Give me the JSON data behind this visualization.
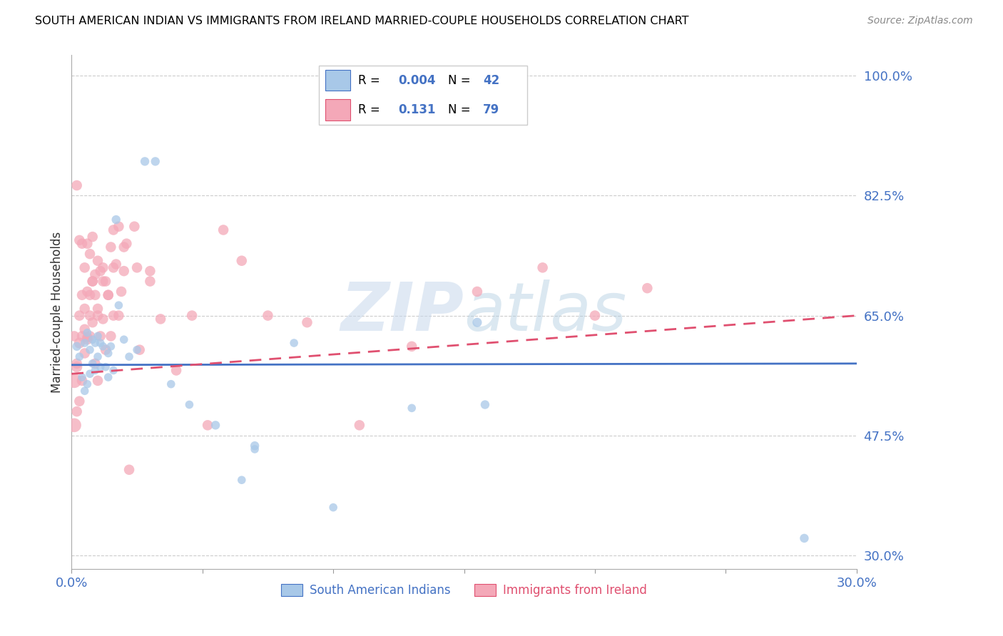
{
  "title": "SOUTH AMERICAN INDIAN VS IMMIGRANTS FROM IRELAND MARRIED-COUPLE HOUSEHOLDS CORRELATION CHART",
  "source": "Source: ZipAtlas.com",
  "ylabel": "Married-couple Households",
  "legend1_label": "South American Indians",
  "legend2_label": "Immigrants from Ireland",
  "r1": "0.004",
  "n1": "42",
  "r2": "0.131",
  "n2": "79",
  "xmin": 0.0,
  "xmax": 0.3,
  "ymin": 0.28,
  "ymax": 1.03,
  "yticks": [
    0.3,
    0.475,
    0.65,
    0.825,
    1.0
  ],
  "ytick_labels": [
    "30.0%",
    "47.5%",
    "65.0%",
    "82.5%",
    "100.0%"
  ],
  "xticks": [
    0.0,
    0.05,
    0.1,
    0.15,
    0.2,
    0.25,
    0.3
  ],
  "xtick_labels": [
    "0.0%",
    "",
    "",
    "",
    "",
    "",
    "30.0%"
  ],
  "color1": "#a8c8e8",
  "color2": "#f4a8b8",
  "trendline1_color": "#4472c4",
  "trendline2_color": "#e05070",
  "blue_color": "#4472c4",
  "pink_color": "#e05070",
  "watermark_color": "#d0dff0",
  "scatter1_x": [
    0.002,
    0.003,
    0.004,
    0.005,
    0.005,
    0.006,
    0.006,
    0.007,
    0.007,
    0.008,
    0.008,
    0.009,
    0.009,
    0.01,
    0.01,
    0.011,
    0.011,
    0.012,
    0.013,
    0.014,
    0.014,
    0.015,
    0.016,
    0.017,
    0.018,
    0.02,
    0.022,
    0.025,
    0.028,
    0.032,
    0.038,
    0.045,
    0.055,
    0.07,
    0.085,
    0.1,
    0.13,
    0.155,
    0.158,
    0.07,
    0.065,
    0.28
  ],
  "scatter1_y": [
    0.605,
    0.59,
    0.56,
    0.54,
    0.61,
    0.55,
    0.625,
    0.6,
    0.565,
    0.615,
    0.58,
    0.61,
    0.57,
    0.62,
    0.59,
    0.61,
    0.575,
    0.605,
    0.575,
    0.595,
    0.56,
    0.605,
    0.57,
    0.79,
    0.665,
    0.615,
    0.59,
    0.6,
    0.875,
    0.875,
    0.55,
    0.52,
    0.49,
    0.455,
    0.61,
    0.37,
    0.515,
    0.64,
    0.52,
    0.46,
    0.41,
    0.325
  ],
  "scatter1_sizes": [
    80,
    70,
    70,
    70,
    70,
    70,
    70,
    70,
    70,
    70,
    70,
    70,
    70,
    70,
    70,
    70,
    70,
    70,
    70,
    70,
    70,
    70,
    70,
    80,
    70,
    70,
    70,
    70,
    80,
    80,
    70,
    70,
    80,
    70,
    70,
    70,
    70,
    90,
    80,
    80,
    70,
    80
  ],
  "scatter2_x": [
    0.001,
    0.001,
    0.002,
    0.002,
    0.002,
    0.003,
    0.003,
    0.003,
    0.004,
    0.004,
    0.004,
    0.005,
    0.005,
    0.005,
    0.006,
    0.006,
    0.006,
    0.007,
    0.007,
    0.007,
    0.008,
    0.008,
    0.008,
    0.009,
    0.009,
    0.01,
    0.01,
    0.01,
    0.011,
    0.011,
    0.012,
    0.012,
    0.013,
    0.013,
    0.014,
    0.015,
    0.015,
    0.016,
    0.016,
    0.017,
    0.018,
    0.019,
    0.02,
    0.021,
    0.022,
    0.024,
    0.026,
    0.03,
    0.034,
    0.04,
    0.046,
    0.052,
    0.058,
    0.065,
    0.075,
    0.09,
    0.11,
    0.13,
    0.155,
    0.18,
    0.2,
    0.22,
    0.001,
    0.002,
    0.003,
    0.004,
    0.005,
    0.006,
    0.007,
    0.008,
    0.009,
    0.01,
    0.012,
    0.014,
    0.016,
    0.018,
    0.02,
    0.025,
    0.03
  ],
  "scatter2_y": [
    0.555,
    0.49,
    0.575,
    0.51,
    0.84,
    0.61,
    0.525,
    0.76,
    0.62,
    0.555,
    0.755,
    0.66,
    0.595,
    0.72,
    0.685,
    0.615,
    0.755,
    0.68,
    0.62,
    0.74,
    0.7,
    0.64,
    0.765,
    0.71,
    0.58,
    0.66,
    0.555,
    0.73,
    0.715,
    0.62,
    0.7,
    0.645,
    0.7,
    0.6,
    0.68,
    0.75,
    0.62,
    0.775,
    0.72,
    0.725,
    0.65,
    0.685,
    0.715,
    0.755,
    0.425,
    0.78,
    0.6,
    0.715,
    0.645,
    0.57,
    0.65,
    0.49,
    0.775,
    0.73,
    0.65,
    0.64,
    0.49,
    0.605,
    0.685,
    0.72,
    0.65,
    0.69,
    0.62,
    0.58,
    0.65,
    0.68,
    0.63,
    0.618,
    0.65,
    0.7,
    0.68,
    0.65,
    0.72,
    0.68,
    0.65,
    0.78,
    0.75,
    0.72,
    0.7
  ],
  "scatter2_sizes": [
    220,
    200,
    120,
    110,
    110,
    120,
    110,
    110,
    110,
    110,
    110,
    110,
    110,
    110,
    110,
    110,
    110,
    110,
    110,
    110,
    110,
    110,
    110,
    110,
    110,
    110,
    110,
    110,
    110,
    110,
    110,
    110,
    110,
    110,
    110,
    110,
    110,
    110,
    110,
    110,
    110,
    110,
    110,
    110,
    110,
    110,
    110,
    110,
    110,
    110,
    110,
    110,
    110,
    110,
    110,
    110,
    110,
    110,
    110,
    110,
    110,
    110,
    110,
    110,
    110,
    110,
    110,
    110,
    110,
    110,
    110,
    110,
    110,
    110,
    110,
    110,
    110,
    110,
    110
  ],
  "trend1_x0": 0.0,
  "trend1_x1": 0.3,
  "trend1_y0": 0.578,
  "trend1_y1": 0.58,
  "trend2_x0": 0.0,
  "trend2_x1": 0.3,
  "trend2_y0": 0.565,
  "trend2_y1": 0.65
}
